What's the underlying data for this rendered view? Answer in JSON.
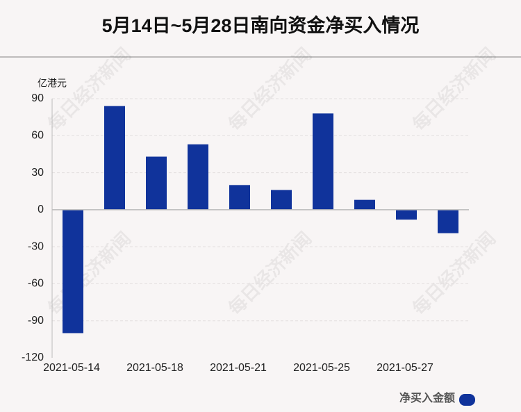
{
  "chart_data": {
    "type": "bar",
    "title": "5月14日~5月28日南向资金净买入情况",
    "y_unit": "亿港元",
    "categories": [
      "2021-05-14",
      null,
      "2021-05-18",
      null,
      "2021-05-21",
      null,
      "2021-05-25",
      null,
      "2021-05-27",
      null
    ],
    "series": [
      {
        "name": "净买入金额",
        "color": "#10339b",
        "values": [
          -100,
          84,
          43,
          53,
          20,
          16,
          78,
          8,
          -8,
          -19
        ]
      }
    ],
    "ylim": [
      -120,
      90
    ],
    "yticks": [
      -120,
      -90,
      -60,
      -30,
      0,
      30,
      60,
      90
    ],
    "grid": true,
    "legend": "bottom-right",
    "watermark": "每日经济新闻"
  }
}
